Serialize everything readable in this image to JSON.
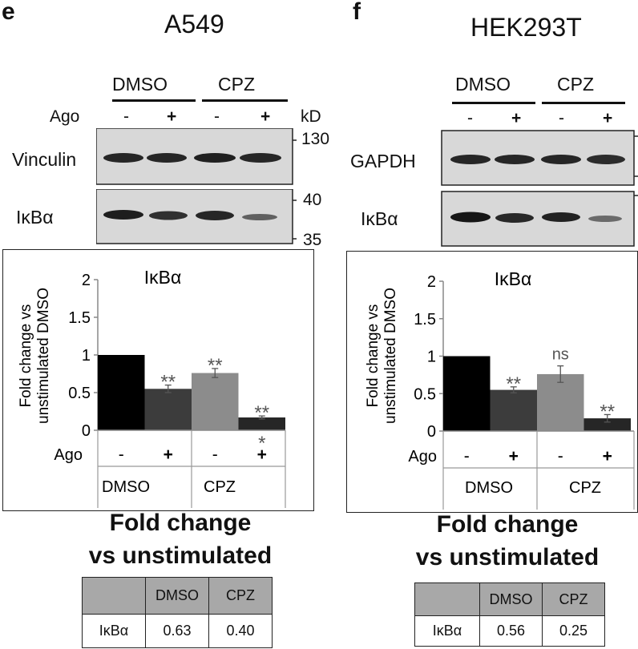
{
  "panels": [
    {
      "id": "e",
      "letter": "e",
      "cell_line": "A549",
      "groups": [
        "DMSO",
        "CPZ"
      ],
      "ago_label": "Ago",
      "ago_signs": [
        "-",
        "+",
        "-",
        "+"
      ],
      "kd_label": "kD",
      "blots": [
        {
          "label": "Vinculin",
          "kd_markers": [
            "130"
          ]
        },
        {
          "label": "IκBα",
          "kd_markers": [
            "40",
            "35"
          ]
        }
      ],
      "chart_title": "IκBα",
      "chart_ylabel_line1": "Fold change vs",
      "chart_ylabel_line2": "unstimulated DMSO",
      "caption_line1": "Fold change",
      "caption_line2": "vs unstimulated",
      "table": {
        "header": [
          "",
          "DMSO",
          "CPZ"
        ],
        "row": [
          "IκBα",
          "0.63",
          "0.40"
        ]
      }
    },
    {
      "id": "f",
      "letter": "f",
      "cell_line": "HEK293T",
      "groups": [
        "DMSO",
        "CPZ"
      ],
      "ago_signs": [
        "-",
        "+",
        "-",
        "+"
      ],
      "blots": [
        {
          "label": "GAPDH"
        },
        {
          "label": "IκBα"
        }
      ],
      "chart_title": "IκBα",
      "chart_ylabel_line1": "Fold change vs",
      "chart_ylabel_line2": "unstimulated DMSO",
      "caption_line1": "Fold change",
      "caption_line2": "vs unstimulated",
      "table": {
        "header": [
          "",
          "DMSO",
          "CPZ"
        ],
        "row": [
          "IκBα",
          "0.56",
          "0.25"
        ]
      }
    }
  ],
  "chart_data": [
    {
      "type": "bar",
      "title": "IκBα",
      "ylabel": "Fold change vs unstimulated DMSO",
      "xlabel": "Ago",
      "categories": [
        "-",
        "+",
        "-",
        "+"
      ],
      "groups": [
        "DMSO",
        "CPZ"
      ],
      "values": [
        1.0,
        0.55,
        0.76,
        0.17
      ],
      "errors": [
        0.0,
        0.05,
        0.06,
        0.02
      ],
      "annotations": [
        "",
        "**",
        "**",
        "**"
      ],
      "annotations_below": [
        "",
        "",
        "",
        "*"
      ],
      "colors": [
        "#000000",
        "#3c3c3c",
        "#8c8c8c",
        "#262626"
      ],
      "yticks": [
        "0",
        "0.5",
        "1",
        "1.5",
        "2"
      ],
      "ylim": [
        0,
        2
      ]
    },
    {
      "type": "bar",
      "title": "IκBα",
      "ylabel": "Fold change vs unstimulated DMSO",
      "xlabel": "Ago",
      "categories": [
        "-",
        "+",
        "-",
        "+"
      ],
      "groups": [
        "DMSO",
        "CPZ"
      ],
      "values": [
        1.0,
        0.55,
        0.76,
        0.17
      ],
      "errors": [
        0.0,
        0.04,
        0.11,
        0.05
      ],
      "annotations": [
        "",
        "**",
        "ns",
        "**"
      ],
      "annotations_below": [
        "",
        "",
        "",
        ""
      ],
      "colors": [
        "#000000",
        "#3c3c3c",
        "#8c8c8c",
        "#262626"
      ],
      "yticks": [
        "0",
        "0.5",
        "1",
        "1.5",
        "2"
      ],
      "ylim": [
        0,
        2
      ]
    }
  ]
}
